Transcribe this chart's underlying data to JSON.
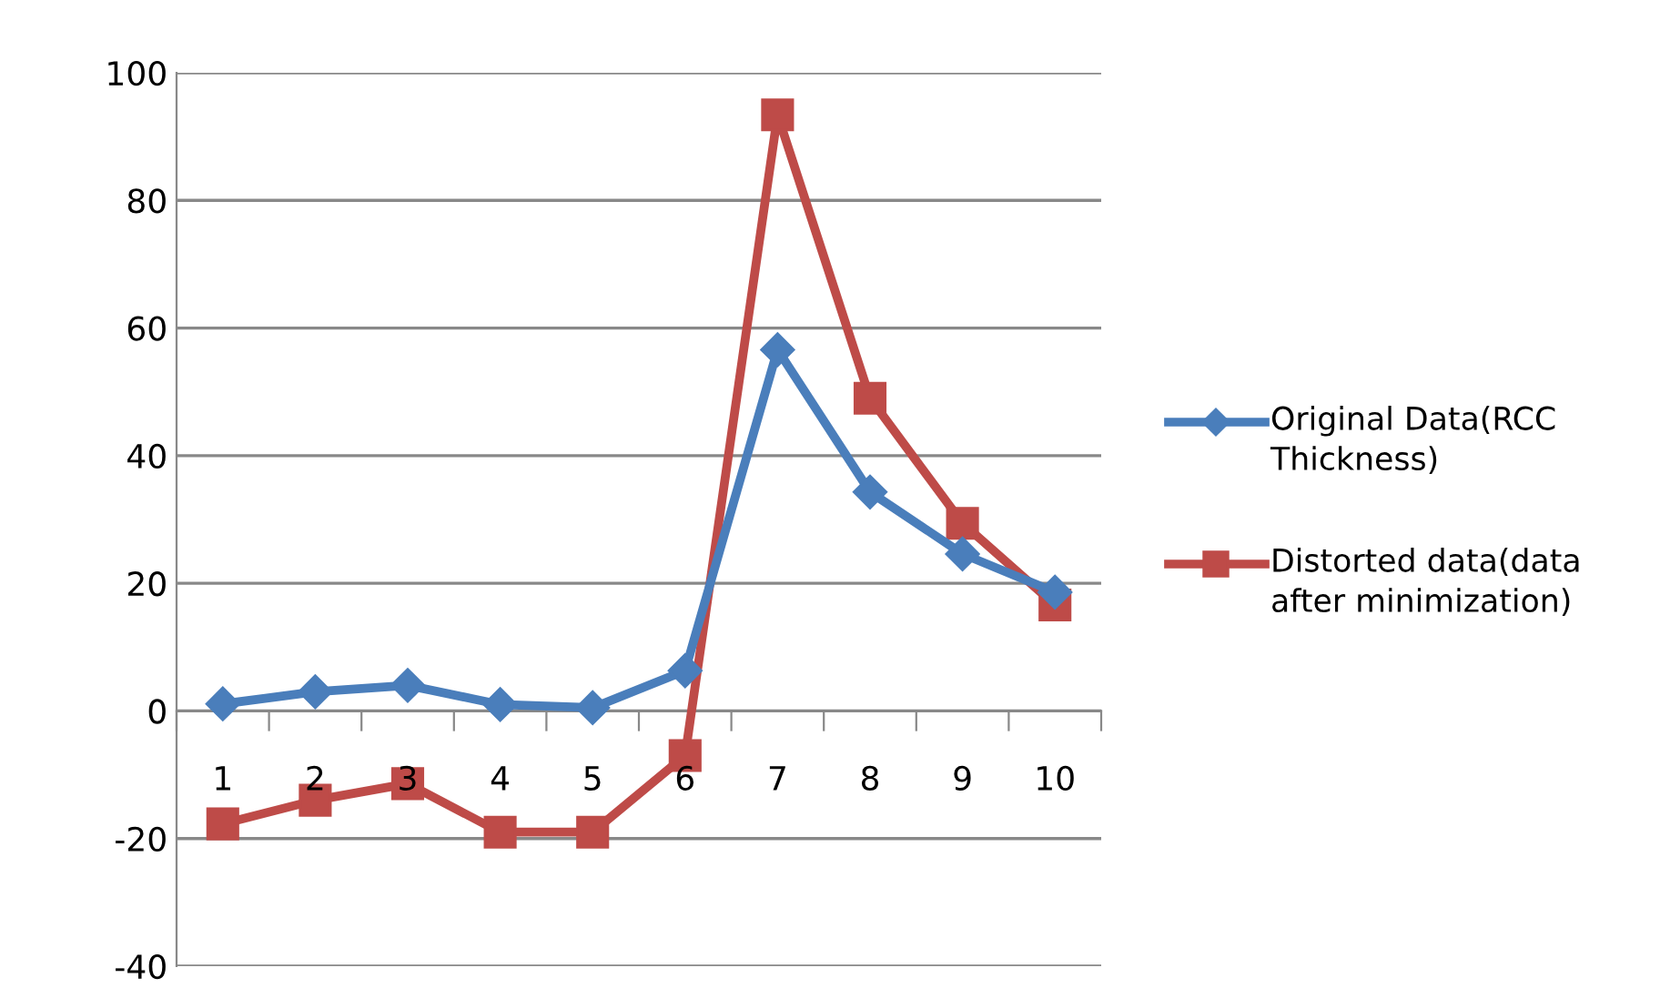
{
  "chart_data": {
    "type": "line",
    "categories": [
      "1",
      "2",
      "3",
      "4",
      "5",
      "6",
      "7",
      "8",
      "9",
      "10"
    ],
    "series": [
      {
        "name": "Original Data(RCC Thickness)",
        "color": "#4a7ebb",
        "marker": "diamond",
        "values": [
          1.1,
          3,
          4,
          1,
          0.5,
          6.3,
          56.6,
          34.3,
          24.6,
          18.6
        ]
      },
      {
        "name": "Distorted data(data after minimization)",
        "color": "#be4b48",
        "marker": "square",
        "values": [
          -17.7,
          -14,
          -11.4,
          -19,
          -19,
          -7,
          93.4,
          49,
          29.4,
          16.6
        ]
      }
    ],
    "ylim": [
      -40,
      100
    ],
    "yticks": [
      -40,
      -20,
      0,
      20,
      40,
      60,
      80,
      100
    ],
    "grid": "y",
    "legend": "right",
    "line_style": "solid"
  }
}
